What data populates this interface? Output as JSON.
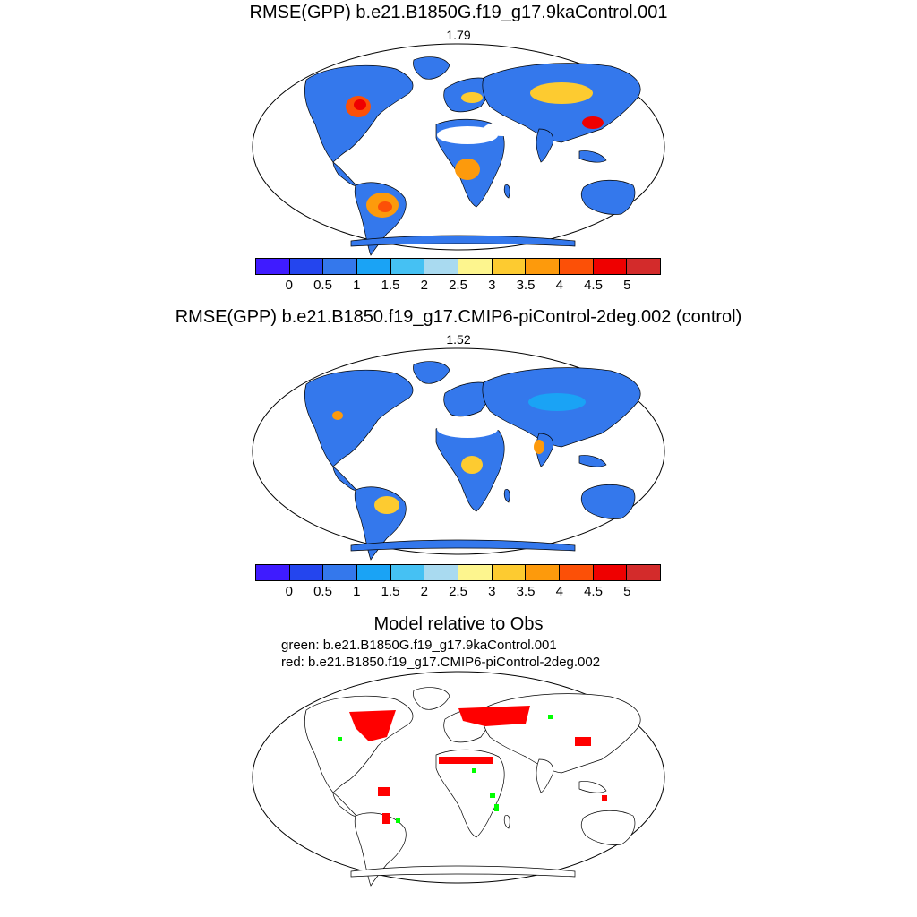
{
  "panel1": {
    "title": "RMSE(GPP) b.e21.B1850G.f19_g17.9kaControl.001",
    "value": "1.79"
  },
  "panel2": {
    "title": "RMSE(GPP) b.e21.B1850.f19_g17.CMIP6-piControl-2deg.002 (control)",
    "value": "1.52"
  },
  "panel3": {
    "title": "Model relative to Obs",
    "line1": "green: b.e21.B1850G.f19_g17.9kaControl.001",
    "line2": "red: b.e21.B1850.f19_g17.CMIP6-piControl-2deg.002"
  },
  "colorbar": {
    "colors": [
      "#3f1bff",
      "#2445ee",
      "#3478ec",
      "#1aa3f5",
      "#45c1f3",
      "#a9daf0",
      "#fdf58e",
      "#fdcb30",
      "#fd9a0c",
      "#fc5007",
      "#ef0000",
      "#d32b2b"
    ],
    "labels": [
      "0",
      "0.5",
      "1",
      "1.5",
      "2",
      "2.5",
      "3",
      "3.5",
      "4",
      "4.5",
      "5"
    ]
  },
  "relative_colors": {
    "green": "#00ff00",
    "red": "#ff0000"
  }
}
